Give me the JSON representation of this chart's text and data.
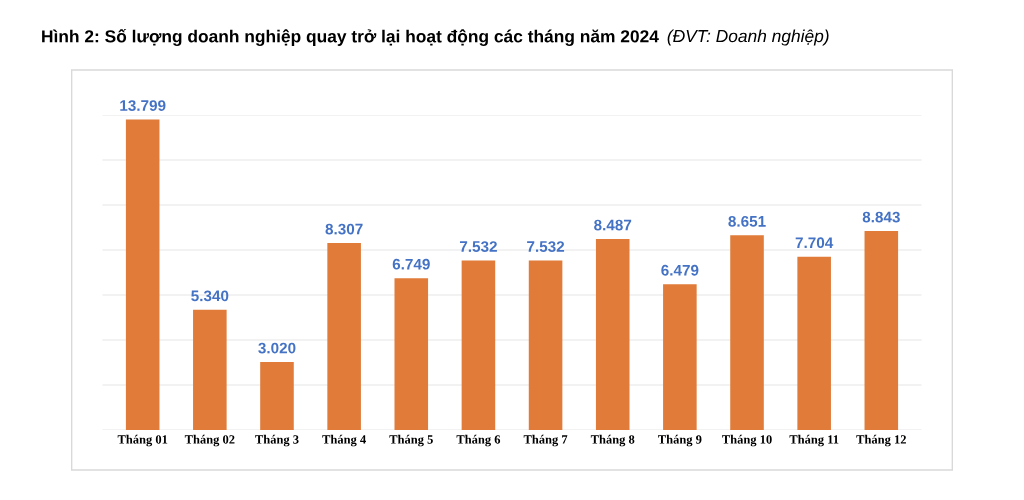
{
  "chart_data": {
    "type": "bar",
    "title": "Hình 2: Số lượng doanh nghiệp quay trở lại hoạt động các tháng năm 2024",
    "subtitle": "(ĐVT: Doanh nghiệp)",
    "categories": [
      "Tháng 01",
      "Tháng 02",
      "Tháng 3",
      "Tháng 4",
      "Tháng 5",
      "Tháng 6",
      "Tháng 7",
      "Tháng 8",
      "Tháng 9",
      "Tháng 10",
      "Tháng 11",
      "Tháng 12"
    ],
    "values": [
      13799,
      5340,
      3020,
      8307,
      6749,
      7532,
      7532,
      8487,
      6479,
      8651,
      7704,
      8843
    ],
    "value_labels": [
      "13.799",
      "5.340",
      "3.020",
      "8.307",
      "6.749",
      "7.532",
      "7.532",
      "8.487",
      "6.479",
      "8.651",
      "7.704",
      "8.843"
    ],
    "color": "#e07b39",
    "ylim": [
      0,
      14000
    ],
    "yticks": [
      {
        "value": 0,
        "label": null
      },
      {
        "value": 2000,
        "label": null
      },
      {
        "value": 4000,
        "label": null
      },
      {
        "value": 6000,
        "label": null
      },
      {
        "value": 8000,
        "label": null
      },
      {
        "value": 10000,
        "label": null
      },
      {
        "value": 12000,
        "label": null
      },
      {
        "value": 14000,
        "label": null
      }
    ],
    "grid": "y"
  }
}
